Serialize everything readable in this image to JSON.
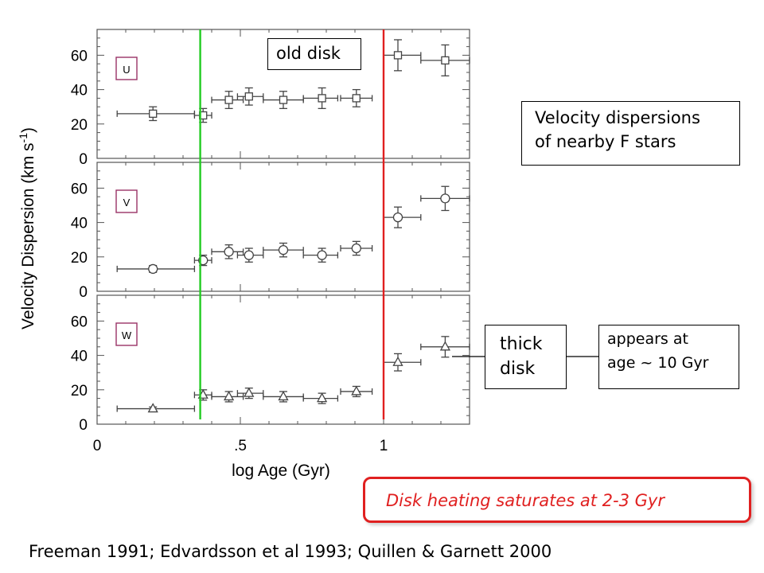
{
  "chart_data": {
    "type": "scatter",
    "xlabel": "log Age (Gyr)",
    "ylabel": "Velocity Dispersion (km s",
    "ylabel_sup": "-1",
    "ylabel_close": ")",
    "xlim": [
      0,
      1.3
    ],
    "ylim": [
      0,
      75
    ],
    "xticks": [
      "0",
      ".5",
      "1"
    ],
    "xtick_values": [
      0,
      0.5,
      1
    ],
    "yticks": [
      "0",
      "20",
      "40",
      "60"
    ],
    "ytick_values": [
      0,
      20,
      40,
      60
    ],
    "grid": false,
    "vertical_lines": [
      {
        "x": 0.36,
        "color": "#22cc22"
      },
      {
        "x": 1.0,
        "color": "#e02020"
      }
    ],
    "panels": [
      {
        "label": "U",
        "marker": "square",
        "points": [
          {
            "x": 0.195,
            "y": 26,
            "xlo": 0.07,
            "xhi": 0.34,
            "yerr": 4
          },
          {
            "x": 0.37,
            "y": 25,
            "xlo": 0.34,
            "xhi": 0.4,
            "yerr": 4
          },
          {
            "x": 0.46,
            "y": 34,
            "xlo": 0.4,
            "xhi": 0.51,
            "yerr": 5
          },
          {
            "x": 0.53,
            "y": 36,
            "xlo": 0.49,
            "xhi": 0.58,
            "yerr": 5
          },
          {
            "x": 0.65,
            "y": 34,
            "xlo": 0.58,
            "xhi": 0.72,
            "yerr": 5
          },
          {
            "x": 0.785,
            "y": 35,
            "xlo": 0.72,
            "xhi": 0.84,
            "yerr": 6
          },
          {
            "x": 0.905,
            "y": 35,
            "xlo": 0.85,
            "xhi": 0.96,
            "yerr": 5
          },
          {
            "x": 1.05,
            "y": 60,
            "xlo": 1.0,
            "xhi": 1.13,
            "yerr": 9
          },
          {
            "x": 1.215,
            "y": 57,
            "xlo": 1.13,
            "xhi": 1.3,
            "yerr": 9
          }
        ]
      },
      {
        "label": "V",
        "marker": "circle",
        "points": [
          {
            "x": 0.195,
            "y": 13,
            "xlo": 0.07,
            "xhi": 0.34,
            "yerr": 2
          },
          {
            "x": 0.37,
            "y": 18,
            "xlo": 0.34,
            "xhi": 0.4,
            "yerr": 3
          },
          {
            "x": 0.46,
            "y": 23,
            "xlo": 0.4,
            "xhi": 0.51,
            "yerr": 4
          },
          {
            "x": 0.53,
            "y": 21,
            "xlo": 0.49,
            "xhi": 0.58,
            "yerr": 4
          },
          {
            "x": 0.65,
            "y": 24,
            "xlo": 0.58,
            "xhi": 0.72,
            "yerr": 4
          },
          {
            "x": 0.785,
            "y": 21,
            "xlo": 0.72,
            "xhi": 0.84,
            "yerr": 4
          },
          {
            "x": 0.905,
            "y": 25,
            "xlo": 0.85,
            "xhi": 0.96,
            "yerr": 4
          },
          {
            "x": 1.05,
            "y": 43,
            "xlo": 1.0,
            "xhi": 1.13,
            "yerr": 6
          },
          {
            "x": 1.215,
            "y": 54,
            "xlo": 1.13,
            "xhi": 1.3,
            "yerr": 7
          }
        ]
      },
      {
        "label": "W",
        "marker": "triangle",
        "points": [
          {
            "x": 0.195,
            "y": 9,
            "xlo": 0.07,
            "xhi": 0.34,
            "yerr": 1
          },
          {
            "x": 0.37,
            "y": 17,
            "xlo": 0.34,
            "xhi": 0.4,
            "yerr": 3
          },
          {
            "x": 0.46,
            "y": 16,
            "xlo": 0.4,
            "xhi": 0.51,
            "yerr": 3
          },
          {
            "x": 0.53,
            "y": 18,
            "xlo": 0.49,
            "xhi": 0.58,
            "yerr": 3
          },
          {
            "x": 0.65,
            "y": 16,
            "xlo": 0.58,
            "xhi": 0.72,
            "yerr": 3
          },
          {
            "x": 0.785,
            "y": 15,
            "xlo": 0.72,
            "xhi": 0.84,
            "yerr": 3
          },
          {
            "x": 0.905,
            "y": 19,
            "xlo": 0.85,
            "xhi": 0.96,
            "yerr": 3
          },
          {
            "x": 1.05,
            "y": 36,
            "xlo": 1.0,
            "xhi": 1.13,
            "yerr": 5
          },
          {
            "x": 1.215,
            "y": 45,
            "xlo": 1.13,
            "xhi": 1.3,
            "yerr": 6
          }
        ]
      }
    ]
  },
  "annotations": {
    "old_disk": "old disk",
    "title_box_line1": "Velocity dispersions",
    "title_box_line2": "of nearby F stars",
    "thick_disk_line1": "thick",
    "thick_disk_line2": "disk",
    "appears_line1": "appears at",
    "appears_line2": "age ~ 10 Gyr",
    "saturation": "Disk heating saturates at 2-3 Gyr",
    "references": "Freeman  1991; Edvardsson et al  1993; Quillen & Garnett  2000"
  },
  "colors": {
    "green_line": "#22cc22",
    "red_line": "#e02020",
    "panel_label_border": "#993366",
    "saturation_text": "#e02020",
    "saturation_border": "#e02020",
    "data": "#444444"
  }
}
